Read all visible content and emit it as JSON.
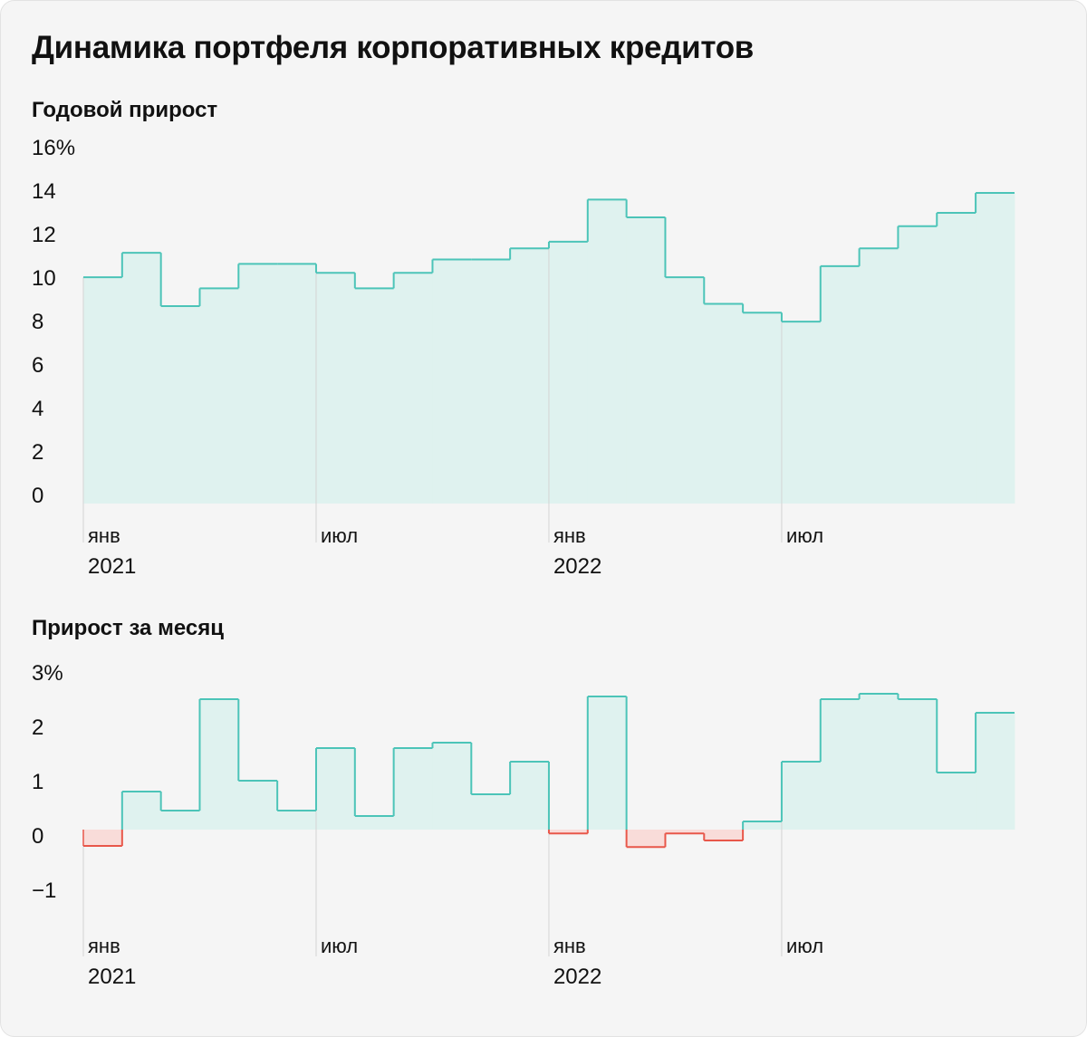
{
  "title": "Динамика портфеля корпоративных кредитов",
  "colors": {
    "positive_line": "#4cc4b8",
    "positive_fill": "#dff2ef",
    "negative_line": "#e8574a",
    "negative_fill": "#f9dcd9",
    "gridline": "#d4d4d4"
  },
  "chart_data": [
    {
      "type": "area",
      "step": true,
      "title": "Годовой прирост",
      "ylabel": "",
      "unit": "%",
      "ylim": [
        0,
        16
      ],
      "yticks": [
        "16%",
        "14",
        "12",
        "10",
        "8",
        "6",
        "4",
        "2",
        "0"
      ],
      "xticks": [
        {
          "month": "янв",
          "year": "2021",
          "index": 0
        },
        {
          "month": "июл",
          "year": "",
          "index": 6
        },
        {
          "month": "янв",
          "year": "2022",
          "index": 12
        },
        {
          "month": "июл",
          "year": "",
          "index": 18
        }
      ],
      "values": [
        10.2,
        11.3,
        8.9,
        9.7,
        10.8,
        10.8,
        10.4,
        9.7,
        10.4,
        11.0,
        11.0,
        11.5,
        11.8,
        13.7,
        12.9,
        10.2,
        9.0,
        8.6,
        8.2,
        10.7,
        11.5,
        12.5,
        13.1,
        14.0
      ]
    },
    {
      "type": "area",
      "step": true,
      "title": "Прирост за месяц",
      "ylabel": "",
      "unit": "%",
      "ylim": [
        -1.5,
        3
      ],
      "yticks": [
        "3%",
        "2",
        "1",
        "0",
        "−1"
      ],
      "xticks": [
        {
          "month": "янв",
          "year": "2021",
          "index": 0
        },
        {
          "month": "июл",
          "year": "",
          "index": 6
        },
        {
          "month": "янв",
          "year": "2022",
          "index": 12
        },
        {
          "month": "июл",
          "year": "",
          "index": 18
        }
      ],
      "values": [
        -0.3,
        0.7,
        0.35,
        2.4,
        0.9,
        0.35,
        1.5,
        0.25,
        1.5,
        1.6,
        0.65,
        1.25,
        -0.07,
        2.45,
        -0.32,
        -0.07,
        -0.2,
        0.15,
        1.25,
        2.4,
        2.5,
        2.4,
        1.05,
        2.15
      ]
    }
  ]
}
